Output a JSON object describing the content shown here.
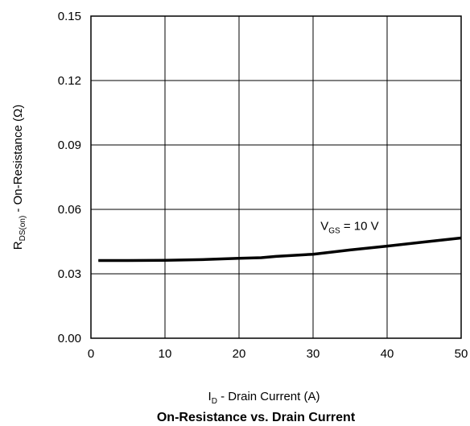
{
  "chart_data": {
    "type": "line",
    "title": "On-Resistance vs. Drain Current",
    "xlabel": {
      "symbol": "I",
      "sub": "D",
      "text": " - Drain Current (A)"
    },
    "ylabel": {
      "symbol": "R",
      "sub": "DS(on)",
      "text": " - On-Resistance (Ω)"
    },
    "xlim": [
      0,
      50
    ],
    "ylim": [
      0,
      0.15
    ],
    "x_ticks": [
      "0",
      "10",
      "20",
      "30",
      "40",
      "50"
    ],
    "y_ticks": [
      "0.00",
      "0.03",
      "0.06",
      "0.09",
      "0.12",
      "0.15"
    ],
    "grid": true,
    "series": [
      {
        "annotation": {
          "symbol": "V",
          "sub": "GS",
          "text": " = 10 V"
        },
        "color": "#000000",
        "x": [
          1,
          5,
          10,
          15,
          20,
          23,
          25,
          30,
          35,
          40,
          45,
          50
        ],
        "y": [
          0.0362,
          0.0362,
          0.0363,
          0.0366,
          0.0372,
          0.0375,
          0.0381,
          0.0391,
          0.0411,
          0.0429,
          0.0448,
          0.0467
        ]
      }
    ]
  }
}
